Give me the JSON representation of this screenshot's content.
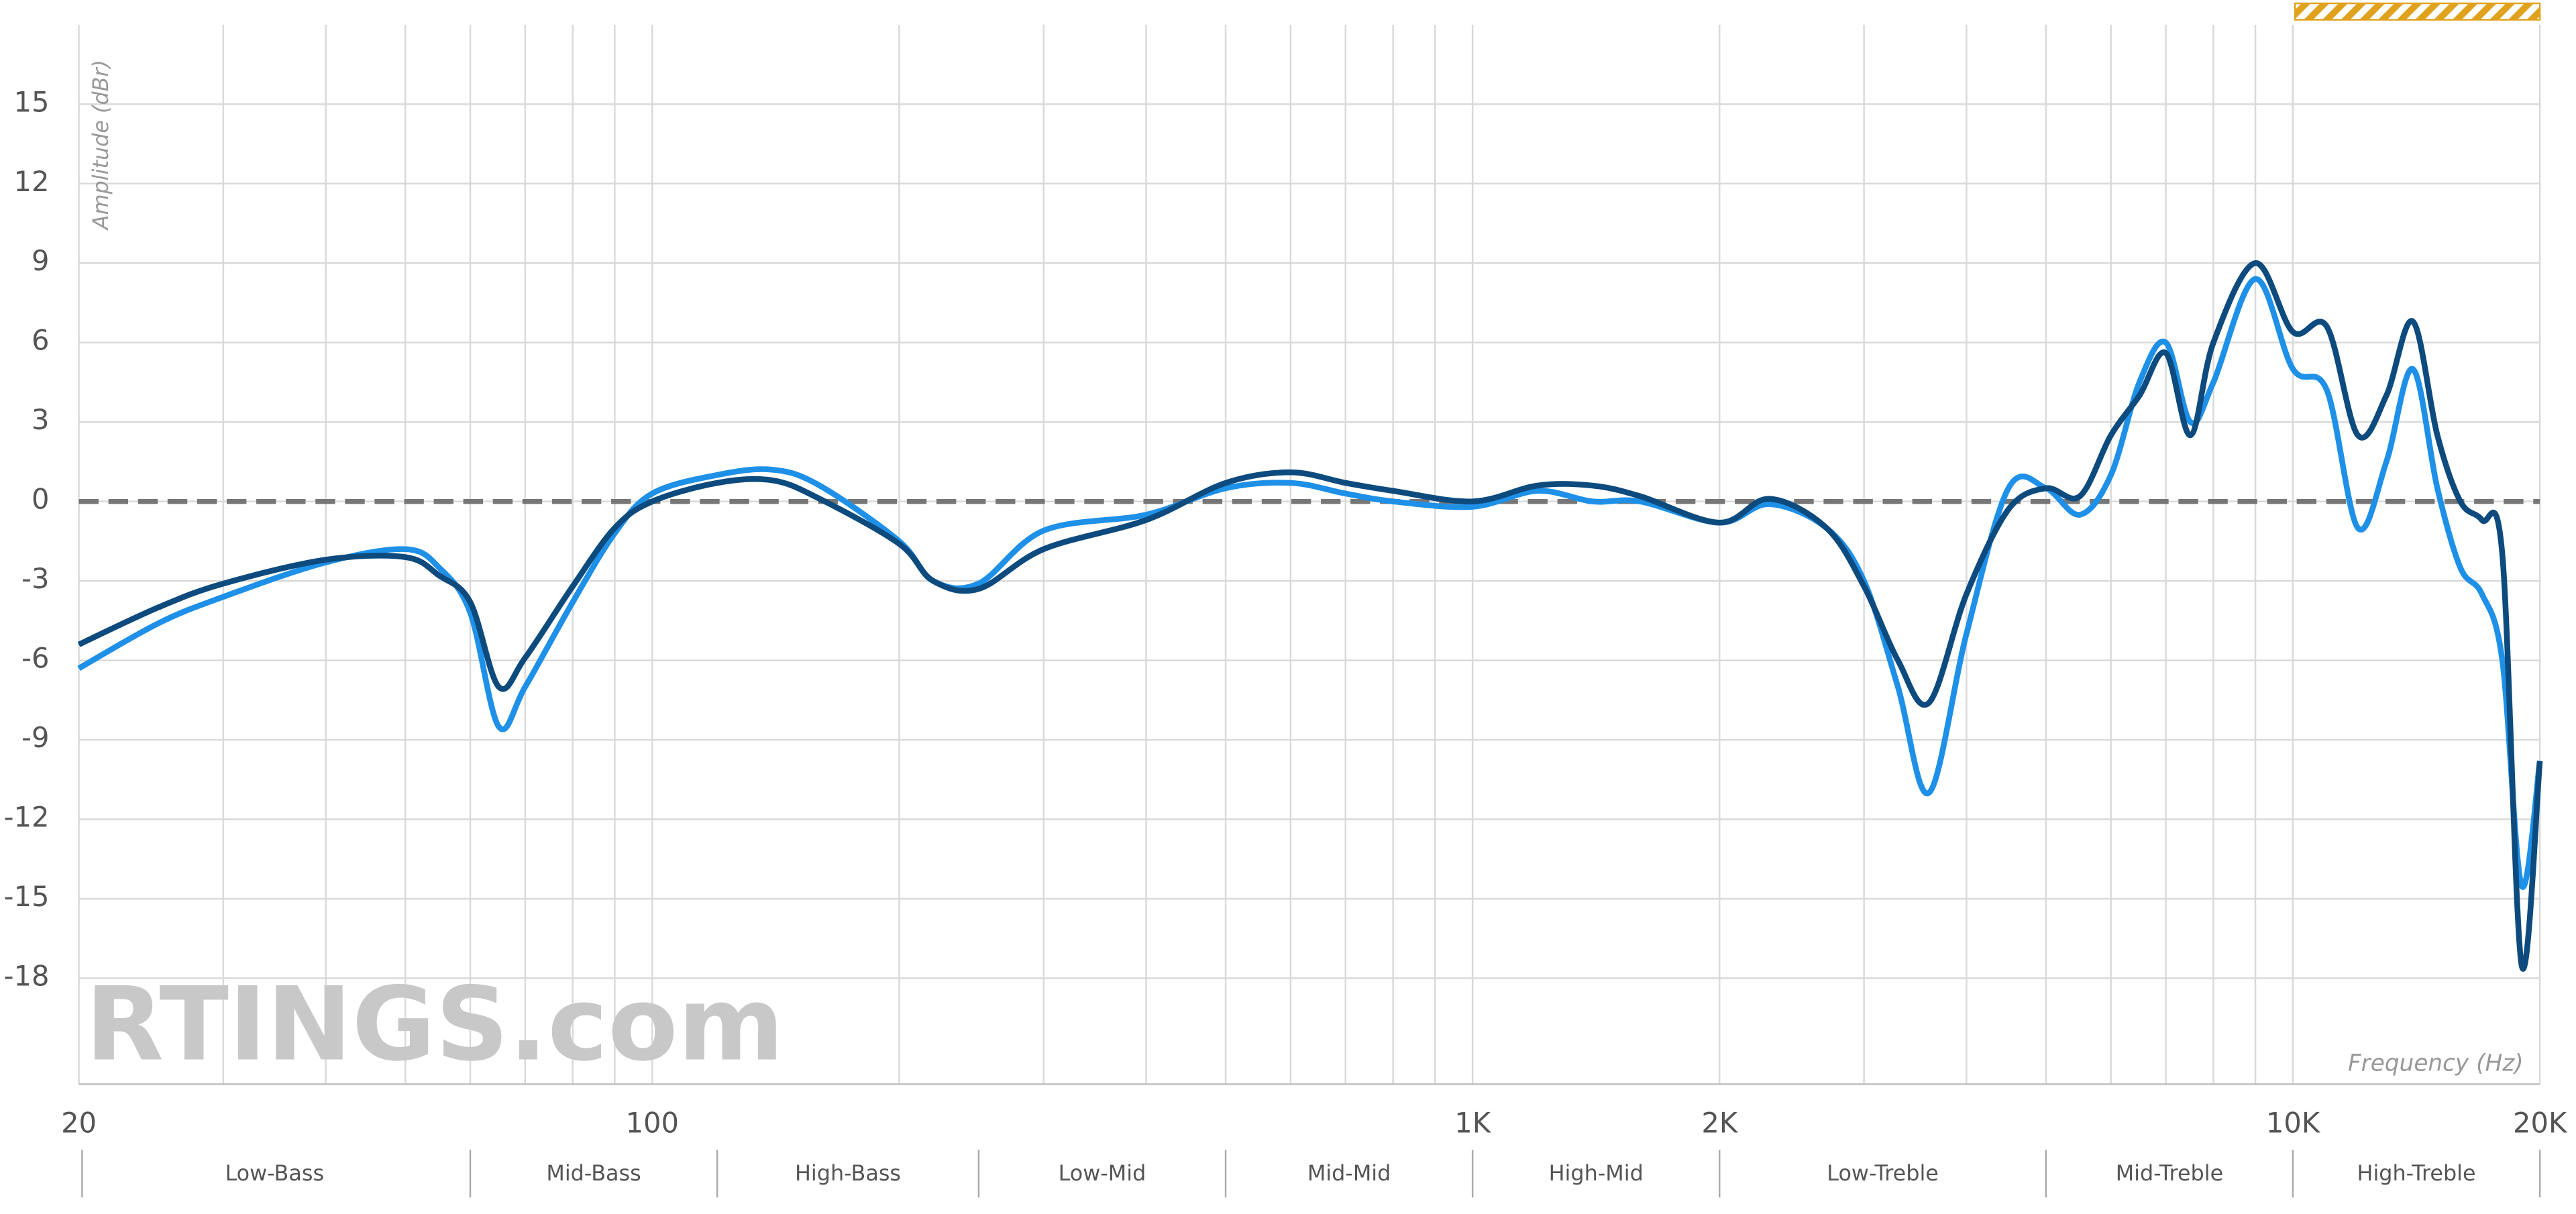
{
  "chart_data": {
    "type": "line",
    "log_x": true,
    "grid": true,
    "y_label": "Amplitude (dBr)",
    "x_label": "Frequency (Hz)",
    "watermark": "RTINGS.com",
    "xlim": [
      20,
      20000
    ],
    "ylim": [
      -22,
      18
    ],
    "xticks": [
      20,
      100,
      {
        "value": 1000,
        "label": "1K"
      },
      {
        "value": 2000,
        "label": "2K"
      },
      {
        "value": 10000,
        "label": "10K"
      },
      {
        "value": 20000,
        "label": "20K"
      }
    ],
    "xminor": [
      30,
      40,
      50,
      60,
      70,
      80,
      90,
      200,
      300,
      400,
      500,
      600,
      700,
      800,
      900,
      3000,
      4000,
      5000,
      6000,
      7000,
      8000,
      9000
    ],
    "yticks": [
      15,
      12,
      9,
      6,
      3,
      0,
      -3,
      -6,
      -9,
      -12,
      -15,
      -18
    ],
    "reference_line": 0,
    "bands": {
      "edges": [
        20,
        60,
        120,
        250,
        500,
        1000,
        2000,
        5000,
        10000,
        20000
      ],
      "labels": [
        "Low-Bass",
        "Mid-Bass",
        "High-Bass",
        "Low-Mid",
        "Mid-Mid",
        "High-Mid",
        "Low-Treble",
        "Mid-Treble",
        "High-Treble"
      ]
    },
    "x": [
      20,
      25,
      30,
      40,
      50,
      55,
      60,
      65,
      70,
      80,
      90,
      100,
      120,
      140,
      160,
      200,
      220,
      250,
      300,
      400,
      500,
      600,
      700,
      800,
      1000,
      1200,
      1400,
      1600,
      2000,
      2300,
      2700,
      3000,
      3300,
      3600,
      4000,
      4500,
      5000,
      5500,
      6000,
      6500,
      7000,
      7500,
      8000,
      9000,
      10000,
      11000,
      12000,
      13000,
      14000,
      15000,
      16000,
      17000,
      18000,
      19000,
      20000
    ],
    "series": [
      {
        "color": "#1e90e8",
        "values": [
          -6.3,
          -4.6,
          -3.6,
          -2.3,
          -1.8,
          -2.5,
          -4.2,
          -8.5,
          -7.0,
          -3.8,
          -1.2,
          0.3,
          1.0,
          1.2,
          0.6,
          -1.5,
          -3.0,
          -3.1,
          -1.1,
          -0.5,
          0.5,
          0.7,
          0.3,
          0.0,
          -0.2,
          0.4,
          0.0,
          0.0,
          -0.8,
          -0.1,
          -1.0,
          -3.0,
          -7.0,
          -11.0,
          -5.0,
          0.5,
          0.5,
          -0.5,
          1.0,
          4.5,
          6.0,
          3.0,
          4.5,
          8.4,
          5.0,
          4.2,
          -1.0,
          1.5,
          5.0,
          0.5,
          -2.5,
          -3.5,
          -6.0,
          -14.5,
          -9.8
        ]
      },
      {
        "color": "#0d4a7e",
        "values": [
          -5.4,
          -4.0,
          -3.1,
          -2.2,
          -2.1,
          -2.8,
          -3.8,
          -7.0,
          -5.9,
          -3.2,
          -1.0,
          0.0,
          0.7,
          0.8,
          0.1,
          -1.6,
          -3.0,
          -3.3,
          -1.8,
          -0.7,
          0.7,
          1.1,
          0.7,
          0.4,
          0.0,
          0.6,
          0.6,
          0.2,
          -0.8,
          0.1,
          -1.0,
          -3.2,
          -6.0,
          -7.6,
          -3.5,
          -0.3,
          0.5,
          0.2,
          2.5,
          4.0,
          5.6,
          2.5,
          6.0,
          9.0,
          6.4,
          6.6,
          2.5,
          4.0,
          6.8,
          2.5,
          0.0,
          -0.7,
          -2.0,
          -17.5,
          -9.8
        ]
      }
    ]
  }
}
